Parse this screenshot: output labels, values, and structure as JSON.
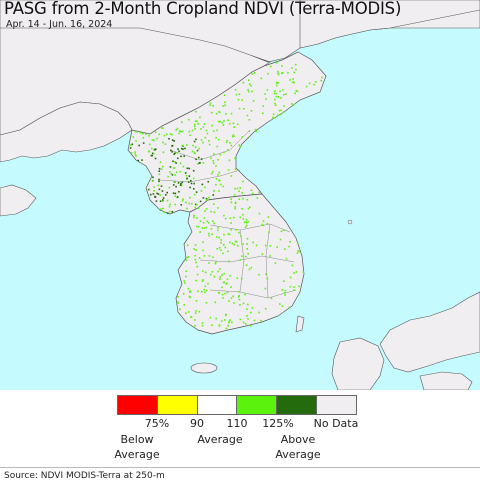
{
  "header": {
    "title": "PASG from 2-Month Cropland NDVI (Terra-MODIS)",
    "date_range": "Apr. 14 - Jun. 16, 2024"
  },
  "colors": {
    "water": "#c5fbfe",
    "land_no_data": "#f0eef0",
    "border": "#8a8a8a",
    "below_average_red": "#ff0000",
    "slightly_below_yellow": "#ffff00",
    "average_white": "#ffffff",
    "above_light_green": "#5bf20e",
    "above_dark_green": "#236b0c",
    "no_data": "#f0eef0"
  },
  "legend": {
    "swatches": [
      {
        "name": "red",
        "color": "#ff0000"
      },
      {
        "name": "yellow",
        "color": "#ffff00"
      },
      {
        "name": "white",
        "color": "#ffffff"
      },
      {
        "name": "light-green",
        "color": "#5bf20e"
      },
      {
        "name": "dark-green",
        "color": "#236b0c"
      },
      {
        "name": "no-data",
        "color": "#f0eef0"
      }
    ],
    "ticks": [
      "75%",
      "90",
      "110",
      "125%"
    ],
    "no_data_label": "No Data",
    "below_label": "Below\nAverage",
    "average_label": "Average",
    "above_label": "Above\nAverage"
  },
  "footer": {
    "source": "Source: NDVI MODIS-Terra at 250-m"
  }
}
